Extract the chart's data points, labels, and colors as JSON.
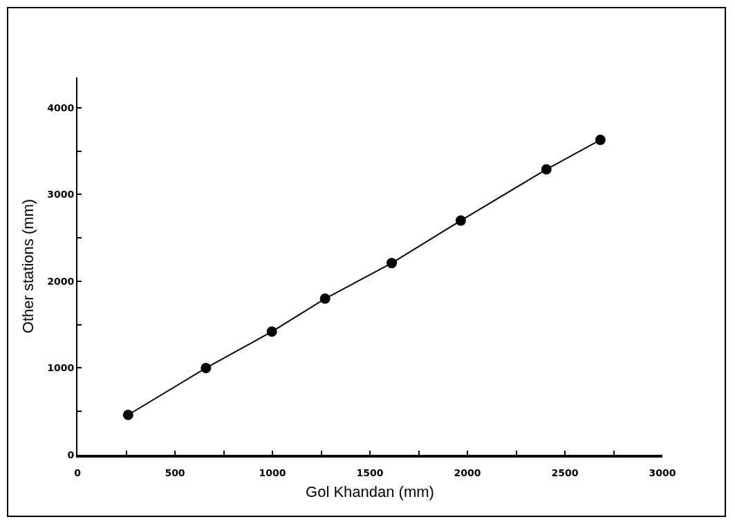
{
  "chart_data": {
    "type": "line",
    "xlabel": "Gol Khandan (mm)",
    "ylabel": "Other stations (mm)",
    "x": [
      260,
      659,
      997,
      1270,
      1612,
      1966,
      2405,
      2682
    ],
    "series": [
      {
        "color": "#000000",
        "values": [
          460,
          1000,
          1420,
          1800,
          2210,
          2700,
          3290,
          3630
        ]
      }
    ],
    "xlim": [
      0,
      3000
    ],
    "xticks": [
      0,
      {
        "value": 250,
        "label": null
      },
      500,
      {
        "value": 750,
        "label": null
      },
      1000,
      {
        "value": 1250,
        "label": null
      },
      1500,
      {
        "value": 1750,
        "label": null
      },
      2000,
      {
        "value": 2250,
        "label": null
      },
      2500,
      {
        "value": 2750,
        "label": null
      },
      3000
    ],
    "ylim": [
      0,
      4350
    ],
    "yticks": [
      0,
      {
        "value": 500,
        "label": null
      },
      1000,
      {
        "value": 1500,
        "label": null
      },
      2000,
      {
        "value": 2500,
        "label": null
      },
      3000,
      {
        "value": 3500,
        "label": null
      },
      4000
    ],
    "grid": false,
    "marker": "circle",
    "line_style": "solid"
  }
}
